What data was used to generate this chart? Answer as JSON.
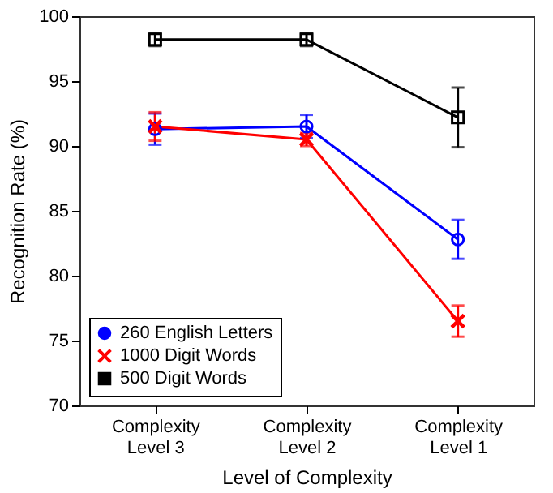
{
  "chart_data": {
    "type": "line",
    "xlabel": "Level of Complexity",
    "ylabel": "Recognition Rate (%)",
    "categories": [
      "Complexity\nLevel 3",
      "Complexity\nLevel 2",
      "Complexity\nLevel 1"
    ],
    "series": [
      {
        "name": "260 English Letters",
        "color": "#0000ff",
        "marker": "circle",
        "values": [
          91.3,
          91.5,
          82.8
        ],
        "errors": [
          1.2,
          0.9,
          1.5
        ]
      },
      {
        "name": "1000 Digit Words",
        "color": "#ff0000",
        "marker": "cross",
        "values": [
          91.5,
          90.5,
          76.5
        ],
        "errors": [
          1.1,
          0.5,
          1.2
        ]
      },
      {
        "name": "500 Digit Words",
        "color": "#000000",
        "marker": "square",
        "values": [
          98.2,
          98.2,
          92.2
        ],
        "errors": [
          0.5,
          0.5,
          2.3
        ]
      }
    ],
    "ylim": [
      70,
      100
    ],
    "yticks": [
      70,
      75,
      80,
      85,
      90,
      95,
      100
    ],
    "grid": false,
    "legend": "bottom left"
  }
}
